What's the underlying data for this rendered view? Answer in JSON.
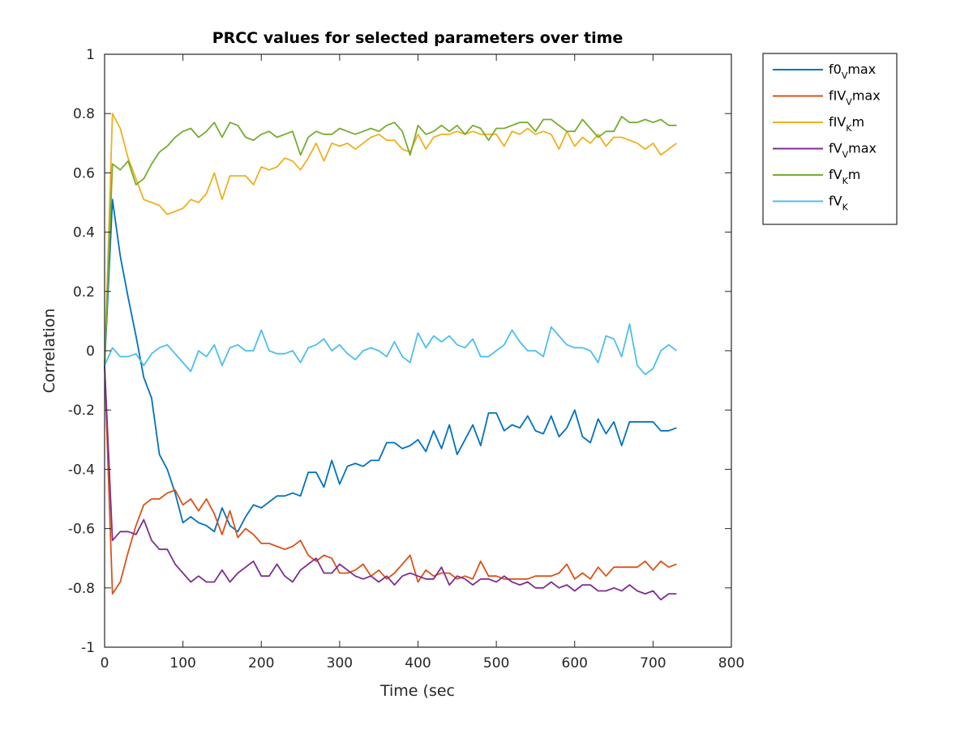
{
  "chart_data": {
    "type": "line",
    "title": "PRCC values for selected parameters over time",
    "xlabel": "Time (sec",
    "ylabel": "Correlation",
    "xlim": [
      0,
      800
    ],
    "ylim": [
      -1,
      1
    ],
    "xticks": [
      0,
      100,
      200,
      300,
      400,
      500,
      600,
      700,
      800
    ],
    "yticks": [
      -1,
      -0.8,
      -0.6,
      -0.4,
      -0.2,
      0,
      0.2,
      0.4,
      0.6,
      0.8,
      1
    ],
    "xtick_labels": [
      "0",
      "100",
      "200",
      "300",
      "400",
      "500",
      "600",
      "700",
      "800"
    ],
    "ytick_labels": [
      "-1",
      "-0.8",
      "-0.6",
      "-0.4",
      "-0.2",
      "0",
      "0.2",
      "0.4",
      "0.6",
      "0.8",
      "1"
    ],
    "legend_position": "outside-top-right",
    "grid": false,
    "x": [
      0,
      10,
      20,
      30,
      40,
      50,
      60,
      70,
      80,
      90,
      100,
      110,
      120,
      130,
      140,
      150,
      160,
      170,
      180,
      190,
      200,
      210,
      220,
      230,
      240,
      250,
      260,
      270,
      280,
      290,
      300,
      310,
      320,
      330,
      340,
      350,
      360,
      370,
      380,
      390,
      400,
      410,
      420,
      430,
      440,
      450,
      460,
      470,
      480,
      490,
      500,
      510,
      520,
      530,
      540,
      550,
      560,
      570,
      580,
      590,
      600,
      610,
      620,
      630,
      640,
      650,
      660,
      670,
      680,
      690,
      700,
      710,
      720,
      730
    ],
    "series": [
      {
        "name": "f0Vmax",
        "label_main": "f0",
        "label_sub": "V",
        "label_tail": "max",
        "color": "#0072BD",
        "values": [
          -0.05,
          0.51,
          0.32,
          0.18,
          0.05,
          -0.09,
          -0.16,
          -0.35,
          -0.4,
          -0.48,
          -0.58,
          -0.56,
          -0.58,
          -0.59,
          -0.61,
          -0.53,
          -0.59,
          -0.61,
          -0.56,
          -0.52,
          -0.53,
          -0.51,
          -0.49,
          -0.49,
          -0.48,
          -0.49,
          -0.41,
          -0.41,
          -0.46,
          -0.37,
          -0.45,
          -0.39,
          -0.38,
          -0.39,
          -0.37,
          -0.37,
          -0.31,
          -0.31,
          -0.33,
          -0.32,
          -0.3,
          -0.34,
          -0.27,
          -0.33,
          -0.25,
          -0.35,
          -0.3,
          -0.25,
          -0.32,
          -0.21,
          -0.21,
          -0.27,
          -0.25,
          -0.26,
          -0.22,
          -0.27,
          -0.28,
          -0.22,
          -0.29,
          -0.26,
          -0.2,
          -0.29,
          -0.31,
          -0.23,
          -0.28,
          -0.24,
          -0.32,
          -0.24,
          -0.24,
          -0.24,
          -0.24,
          -0.27,
          -0.27,
          -0.26
        ]
      },
      {
        "name": "fIVVmax",
        "label_main": "fIV",
        "label_sub": "V",
        "label_tail": "max",
        "color": "#D95319",
        "values": [
          -0.05,
          -0.82,
          -0.78,
          -0.68,
          -0.59,
          -0.52,
          -0.5,
          -0.5,
          -0.48,
          -0.47,
          -0.52,
          -0.5,
          -0.54,
          -0.5,
          -0.55,
          -0.62,
          -0.54,
          -0.63,
          -0.6,
          -0.62,
          -0.65,
          -0.65,
          -0.66,
          -0.67,
          -0.66,
          -0.64,
          -0.69,
          -0.71,
          -0.69,
          -0.7,
          -0.75,
          -0.75,
          -0.74,
          -0.72,
          -0.76,
          -0.74,
          -0.77,
          -0.75,
          -0.72,
          -0.69,
          -0.78,
          -0.74,
          -0.76,
          -0.75,
          -0.75,
          -0.77,
          -0.76,
          -0.77,
          -0.71,
          -0.76,
          -0.76,
          -0.77,
          -0.77,
          -0.77,
          -0.77,
          -0.76,
          -0.76,
          -0.76,
          -0.75,
          -0.72,
          -0.77,
          -0.75,
          -0.77,
          -0.73,
          -0.76,
          -0.73,
          -0.73,
          -0.73,
          -0.73,
          -0.71,
          -0.74,
          -0.71,
          -0.73,
          -0.72
        ]
      },
      {
        "name": "fIVKm",
        "label_main": "fIV",
        "label_sub": "K",
        "label_tail": "m",
        "color": "#EDB120",
        "values": [
          -0.05,
          0.8,
          0.75,
          0.65,
          0.58,
          0.51,
          0.5,
          0.49,
          0.46,
          0.47,
          0.48,
          0.51,
          0.5,
          0.53,
          0.6,
          0.51,
          0.59,
          0.59,
          0.59,
          0.56,
          0.62,
          0.61,
          0.62,
          0.65,
          0.64,
          0.61,
          0.65,
          0.7,
          0.64,
          0.7,
          0.69,
          0.7,
          0.68,
          0.7,
          0.72,
          0.73,
          0.71,
          0.71,
          0.68,
          0.67,
          0.73,
          0.68,
          0.72,
          0.73,
          0.73,
          0.74,
          0.73,
          0.74,
          0.73,
          0.73,
          0.73,
          0.69,
          0.74,
          0.73,
          0.75,
          0.73,
          0.74,
          0.73,
          0.68,
          0.74,
          0.69,
          0.72,
          0.7,
          0.73,
          0.69,
          0.72,
          0.72,
          0.71,
          0.7,
          0.68,
          0.7,
          0.66,
          0.68,
          0.7
        ]
      },
      {
        "name": "fVVmax",
        "label_main": "fV",
        "label_sub": "V",
        "label_tail": "max",
        "color": "#7E2F8E",
        "values": [
          -0.05,
          -0.64,
          -0.61,
          -0.61,
          -0.62,
          -0.57,
          -0.64,
          -0.67,
          -0.67,
          -0.72,
          -0.75,
          -0.78,
          -0.76,
          -0.78,
          -0.78,
          -0.74,
          -0.78,
          -0.75,
          -0.73,
          -0.71,
          -0.76,
          -0.76,
          -0.72,
          -0.76,
          -0.78,
          -0.74,
          -0.72,
          -0.7,
          -0.75,
          -0.75,
          -0.72,
          -0.74,
          -0.76,
          -0.77,
          -0.76,
          -0.78,
          -0.76,
          -0.79,
          -0.76,
          -0.75,
          -0.76,
          -0.77,
          -0.77,
          -0.73,
          -0.79,
          -0.76,
          -0.77,
          -0.79,
          -0.77,
          -0.77,
          -0.78,
          -0.76,
          -0.78,
          -0.79,
          -0.78,
          -0.8,
          -0.8,
          -0.78,
          -0.8,
          -0.79,
          -0.81,
          -0.79,
          -0.79,
          -0.81,
          -0.81,
          -0.8,
          -0.81,
          -0.79,
          -0.81,
          -0.82,
          -0.81,
          -0.84,
          -0.82,
          -0.82
        ]
      },
      {
        "name": "fVKm",
        "label_main": "fV",
        "label_sub": "K",
        "label_tail": "m",
        "color": "#77AC30",
        "values": [
          -0.05,
          0.63,
          0.61,
          0.64,
          0.56,
          0.58,
          0.63,
          0.67,
          0.69,
          0.72,
          0.74,
          0.75,
          0.72,
          0.74,
          0.77,
          0.72,
          0.77,
          0.76,
          0.72,
          0.71,
          0.73,
          0.74,
          0.72,
          0.73,
          0.74,
          0.66,
          0.72,
          0.74,
          0.73,
          0.73,
          0.75,
          0.74,
          0.73,
          0.74,
          0.75,
          0.74,
          0.76,
          0.77,
          0.74,
          0.66,
          0.76,
          0.73,
          0.74,
          0.76,
          0.74,
          0.76,
          0.73,
          0.76,
          0.75,
          0.71,
          0.75,
          0.75,
          0.76,
          0.77,
          0.77,
          0.74,
          0.78,
          0.78,
          0.76,
          0.74,
          0.74,
          0.78,
          0.75,
          0.72,
          0.74,
          0.74,
          0.79,
          0.77,
          0.77,
          0.78,
          0.77,
          0.78,
          0.76,
          0.76
        ]
      },
      {
        "name": "fVK",
        "label_main": "fV",
        "label_sub": "K",
        "label_tail": "",
        "color": "#4DBEEE",
        "values": [
          -0.05,
          0.01,
          -0.02,
          -0.02,
          -0.01,
          -0.05,
          -0.01,
          0.01,
          0.02,
          -0.01,
          -0.04,
          -0.07,
          0.0,
          -0.02,
          0.02,
          -0.05,
          0.01,
          0.02,
          0.0,
          0.0,
          0.07,
          0.0,
          -0.01,
          -0.01,
          0.0,
          -0.04,
          0.01,
          0.02,
          0.04,
          0.0,
          0.02,
          -0.01,
          -0.03,
          0.0,
          0.01,
          0.0,
          -0.02,
          0.03,
          -0.02,
          -0.04,
          0.06,
          0.01,
          0.05,
          0.03,
          0.05,
          0.02,
          0.01,
          0.04,
          -0.02,
          -0.02,
          0.0,
          0.02,
          0.07,
          0.03,
          0.0,
          0.0,
          -0.02,
          0.08,
          0.05,
          0.02,
          0.01,
          0.01,
          0.0,
          -0.04,
          0.05,
          0.04,
          -0.02,
          0.09,
          -0.05,
          -0.08,
          -0.06,
          0.0,
          0.02,
          0.0
        ]
      }
    ]
  }
}
